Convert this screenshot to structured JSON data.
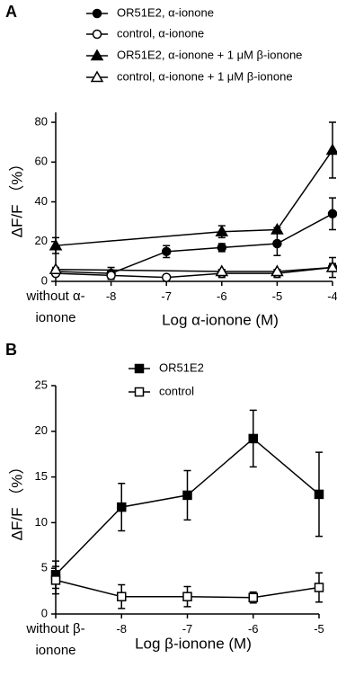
{
  "chart_data": [
    {
      "type": "line",
      "panel_label": "A",
      "y_label": "ΔF/F （%）",
      "x_label": "Log α-ionone (M)",
      "categories": [
        "without α-ionone",
        "-8",
        "-7",
        "-6",
        "-5",
        "-4"
      ],
      "ylim": [
        0,
        85
      ],
      "yticks": [
        0,
        20,
        40,
        60,
        80
      ],
      "series": [
        {
          "name": "OR51E2, α-ionone",
          "color": "#000000",
          "marker": "circle",
          "filled": true,
          "values": [
            5,
            4,
            15,
            17,
            19,
            34
          ],
          "errors": [
            1.5,
            3,
            3,
            2,
            6,
            8
          ]
        },
        {
          "name": "control, α-ionone",
          "color": "#000000",
          "marker": "circle",
          "filled": false,
          "values": [
            4,
            3,
            2,
            4,
            4,
            7
          ],
          "errors": [
            1,
            1,
            1,
            2,
            2,
            5
          ]
        },
        {
          "name": "OR51E2, α-ionone + 1 μM β-ionone",
          "color": "#000000",
          "marker": "triangle",
          "filled": true,
          "x": [
            "without α-ionone",
            "-6",
            "-5",
            "-4"
          ],
          "values": [
            18,
            25,
            26,
            66
          ],
          "errors": [
            4,
            3,
            1,
            14
          ]
        },
        {
          "name": "control, α-ionone + 1 μM β-ionone",
          "color": "#000000",
          "marker": "triangle",
          "filled": false,
          "x": [
            "without α-ionone",
            "-6",
            "-5",
            "-4"
          ],
          "values": [
            6,
            5,
            5,
            7
          ],
          "errors": [
            1,
            1,
            1,
            2
          ]
        }
      ]
    },
    {
      "type": "line",
      "panel_label": "B",
      "y_label": "ΔF/F （%）",
      "x_label": "Log β-ionone (M)",
      "categories": [
        "without β-ionone",
        "-8",
        "-7",
        "-6",
        "-5"
      ],
      "ylim": [
        0,
        25
      ],
      "yticks": [
        0,
        5,
        10,
        15,
        20,
        25
      ],
      "series": [
        {
          "name": "OR51E2",
          "color": "#000000",
          "marker": "square",
          "filled": true,
          "values": [
            4.3,
            11.7,
            13,
            19.2,
            13.1
          ],
          "errors": [
            1.5,
            2.6,
            2.7,
            3.1,
            4.6
          ]
        },
        {
          "name": "control",
          "color": "#000000",
          "marker": "square",
          "filled": false,
          "values": [
            3.7,
            1.9,
            1.9,
            1.8,
            2.9
          ],
          "errors": [
            1.5,
            1.3,
            1.1,
            0.6,
            1.6
          ]
        }
      ]
    }
  ]
}
